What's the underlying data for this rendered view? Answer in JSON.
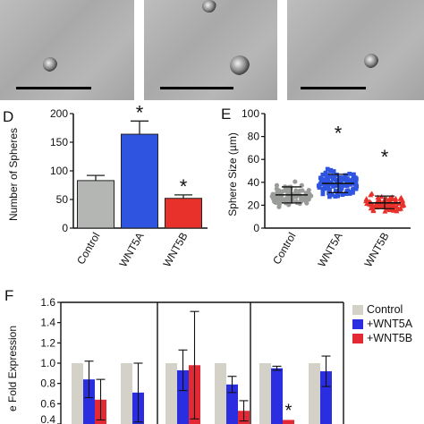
{
  "panel_letters": {
    "d": "D",
    "e": "E",
    "f": "F"
  },
  "chart_data": [
    {
      "id": "D",
      "type": "bar",
      "ylabel": "Number of Spheres",
      "ylim": [
        0,
        200
      ],
      "yticks": [
        0,
        50,
        100,
        150,
        200
      ],
      "categories": [
        "Control",
        "WNT5A",
        "WNT5B"
      ],
      "values": [
        83,
        164,
        52
      ],
      "errors": [
        9,
        23,
        6
      ],
      "colors": [
        "#b4b6b4",
        "#2f55e0",
        "#e8312a"
      ],
      "significance": [
        "",
        "*",
        "*"
      ]
    },
    {
      "id": "E",
      "type": "scatter",
      "ylabel": "Sphere Size  (µm)",
      "ylim": [
        0,
        100
      ],
      "yticks": [
        0,
        20,
        40,
        60,
        80,
        100
      ],
      "categories": [
        "Control",
        "WNT5A",
        "WNT5B"
      ],
      "means": [
        29,
        39,
        22
      ],
      "sd_low": [
        22,
        31,
        17
      ],
      "sd_high": [
        36,
        47,
        28
      ],
      "ranges": [
        [
          12,
          57
        ],
        [
          13,
          74
        ],
        [
          8,
          53
        ]
      ],
      "n_points": [
        90,
        110,
        90
      ],
      "colors": [
        "#9a9c9a",
        "#2f55e0",
        "#e8312a"
      ],
      "significance": [
        "",
        "*",
        "*"
      ]
    },
    {
      "id": "F",
      "type": "bar",
      "ylabel": "Relative Fold Expression",
      "ylabel_visible": "e Fold Expression",
      "ylim": [
        0.4,
        1.6
      ],
      "yticks": [
        0.4,
        0.6,
        0.8,
        1.0,
        1.2,
        1.4,
        1.6
      ],
      "ytick_labels": [
        "0.4",
        "0.6",
        "0.8",
        "1.0",
        "1.2",
        "1.4",
        "1.6"
      ],
      "legend": [
        "Control",
        "+WNT5A",
        "+WNT5B"
      ],
      "legend_position": "right",
      "colors": [
        "#d3d1c8",
        "#2a2ee0",
        "#e32a34"
      ],
      "groups": [
        {
          "values": [
            1.0,
            0.84,
            0.64
          ],
          "errors": [
            null,
            0.18,
            0.2
          ]
        },
        {
          "values": [
            1.0,
            0.71,
            null
          ],
          "errors": [
            null,
            0.29,
            null
          ]
        },
        {
          "values": [
            1.0,
            0.93,
            0.98
          ],
          "errors": [
            null,
            0.2,
            0.53
          ]
        },
        {
          "values": [
            1.0,
            0.79,
            0.53
          ],
          "errors": [
            null,
            0.08,
            0.1
          ]
        },
        {
          "values": [
            1.0,
            0.95,
            0.44
          ],
          "errors": [
            null,
            0.02,
            0.0
          ]
        },
        {
          "values": [
            1.0,
            0.92,
            null
          ],
          "errors": [
            null,
            0.15,
            null
          ]
        }
      ],
      "significance_marks": [
        {
          "group": 4,
          "series": 2,
          "text": "*"
        }
      ]
    }
  ]
}
